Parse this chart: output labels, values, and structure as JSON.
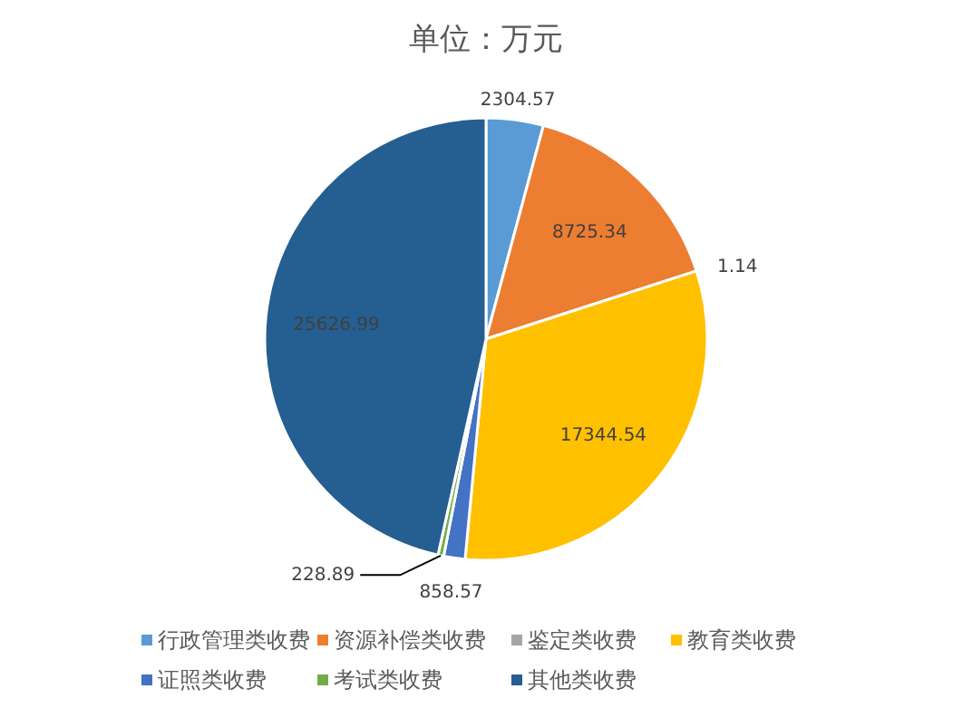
{
  "chart_data": {
    "type": "pie",
    "title": "单位：万元",
    "categories": [
      "行政管理类收费",
      "资源补偿类收费",
      "鉴定类收费",
      "教育类收费",
      "证照类收费",
      "考试类收费",
      "其他类收费"
    ],
    "values": [
      2304.57,
      8725.34,
      1.14,
      17344.54,
      858.57,
      228.89,
      25626.99
    ],
    "colors": [
      "#5b9bd5",
      "#ed7d31",
      "#a5a5a5",
      "#ffc000",
      "#4472c4",
      "#70ad47",
      "#255e91"
    ],
    "data_labels": true,
    "legend": "bottom"
  }
}
